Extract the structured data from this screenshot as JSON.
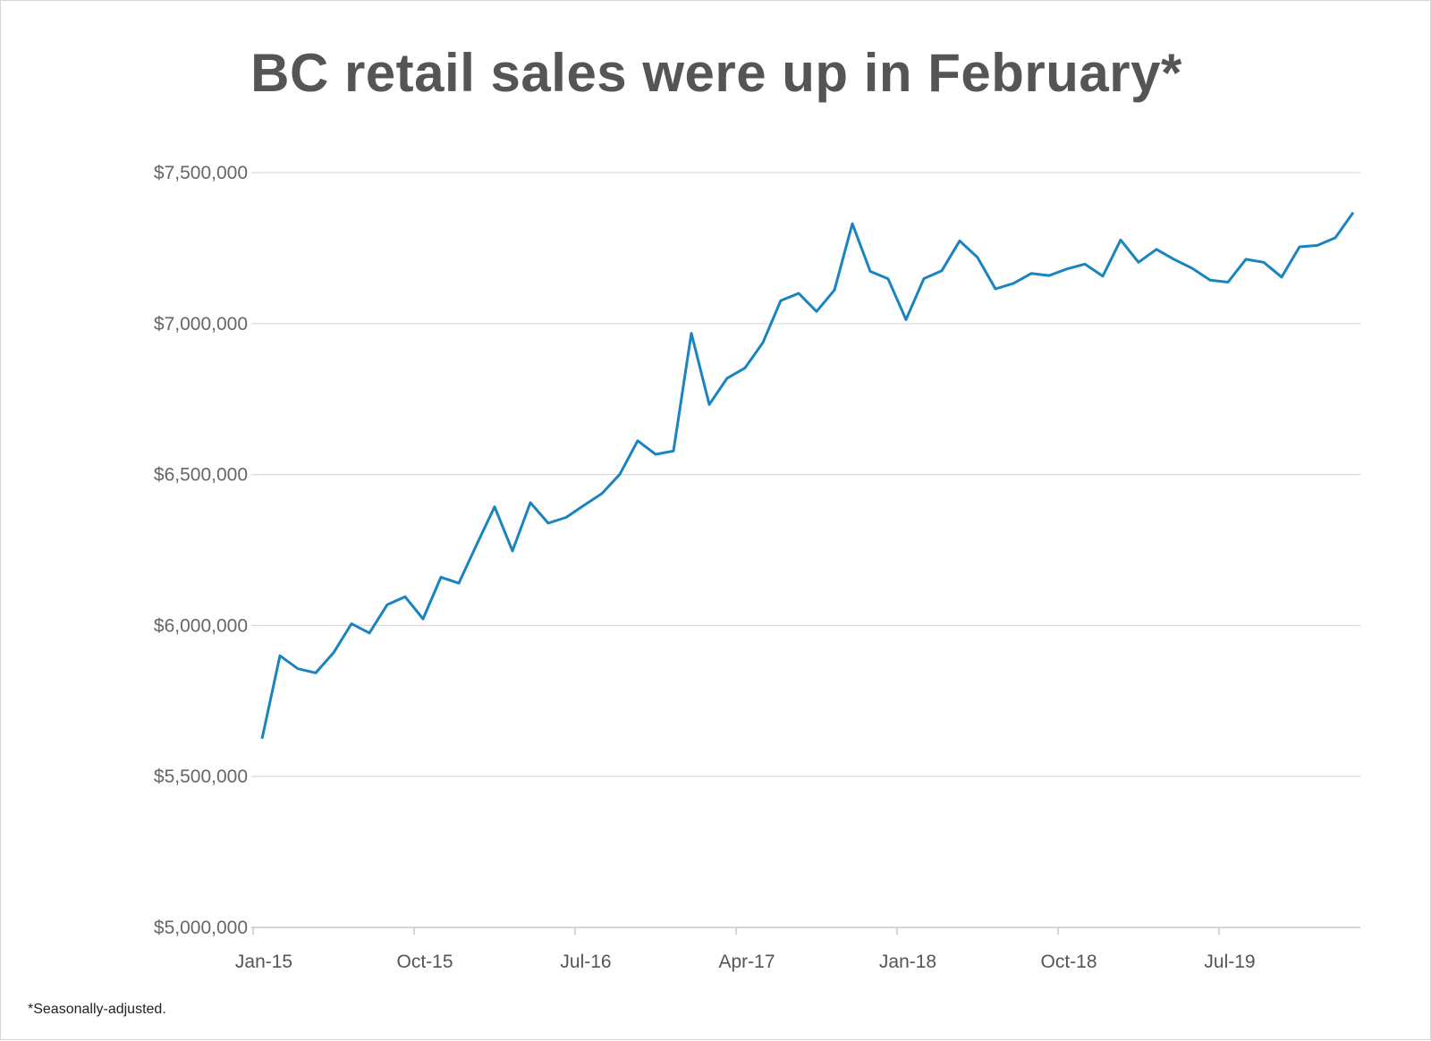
{
  "chart_data": {
    "type": "line",
    "title": "BC retail sales were up in February*",
    "xlabel": "",
    "ylabel": "",
    "footnote": "*Seasonally-adjusted.",
    "ylim": [
      5000000,
      7500000
    ],
    "yticks": [
      5000000,
      5500000,
      6000000,
      6500000,
      7000000,
      7500000
    ],
    "ytick_labels": [
      "$5,000,000",
      "$5,500,000",
      "$6,000,000",
      "$6,500,000",
      "$7,000,000",
      "$7,500,000"
    ],
    "xtick_labels": [
      "Jan-15",
      "Oct-15",
      "Jul-16",
      "Apr-17",
      "Jan-18",
      "Oct-18",
      "Jul-19"
    ],
    "xtick_month_index": [
      0,
      9,
      18,
      27,
      36,
      45,
      54
    ],
    "grid": true,
    "line_color": "#1a84bf",
    "series": [
      {
        "values": [
          5625000,
          5900000,
          5857000,
          5843000,
          5910000,
          6006000,
          5975000,
          6069000,
          6095000,
          6022000,
          6160000,
          6140000,
          6268000,
          6393000,
          6247000,
          6407000,
          6339000,
          6358000,
          6398000,
          6437000,
          6501000,
          6612000,
          6567000,
          6578000,
          6968000,
          6732000,
          6819000,
          6853000,
          6937000,
          7076000,
          7100000,
          7040000,
          7111000,
          7331000,
          7173000,
          7148000,
          7013000,
          7149000,
          7175000,
          7274000,
          7219000,
          7115000,
          7133000,
          7166000,
          7159000,
          7181000,
          7197000,
          7157000,
          7277000,
          7203000,
          7246000,
          7212000,
          7183000,
          7144000,
          7137000,
          7213000,
          7203000,
          7154000,
          7254000,
          7259000,
          7284000,
          7368000
        ]
      }
    ]
  }
}
